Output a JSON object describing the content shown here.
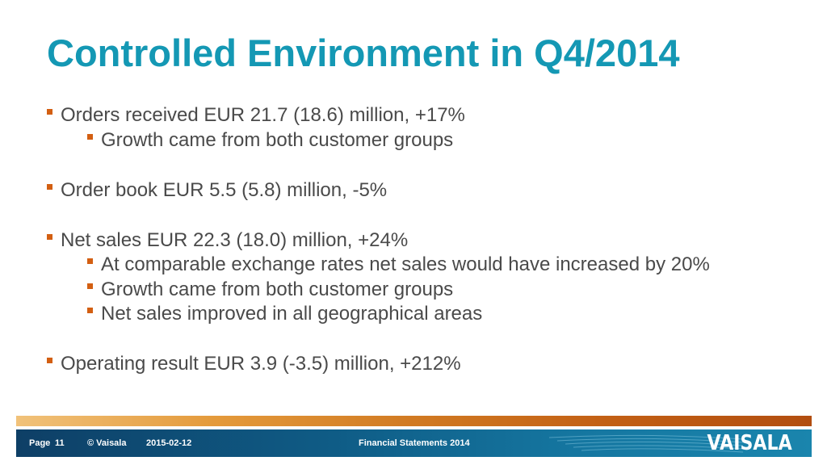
{
  "slide": {
    "title": "Controlled Environment in Q4/2014",
    "bullets": [
      {
        "level": 1,
        "text": "Orders received EUR 21.7 (18.6) million, +17%"
      },
      {
        "level": 2,
        "text": "Growth came from both customer groups"
      },
      {
        "level": 1,
        "text": "Order book EUR 5.5 (5.8) million, -5%"
      },
      {
        "level": 1,
        "text": "Net sales EUR 22.3 (18.0) million, +24%"
      },
      {
        "level": 2,
        "text": "At comparable exchange rates net sales would have increased by 20%"
      },
      {
        "level": 2,
        "text": "Growth came from both customer groups"
      },
      {
        "level": 2,
        "text": "Net sales improved in all geographical areas"
      },
      {
        "level": 1,
        "text": "Operating result EUR 3.9 (-3.5) million, +212%"
      }
    ]
  },
  "footer": {
    "page_label": "Page",
    "page_number": "11",
    "copyright": "© Vaisala",
    "date": "2015-02-12",
    "document_title": "Financial Statements 2014",
    "logo_text": "VAISALA"
  },
  "colors": {
    "title": "#1498b4",
    "body_text": "#4a4a4a",
    "bullet": "#d35f12",
    "footer_bar": "#0f5c86"
  }
}
